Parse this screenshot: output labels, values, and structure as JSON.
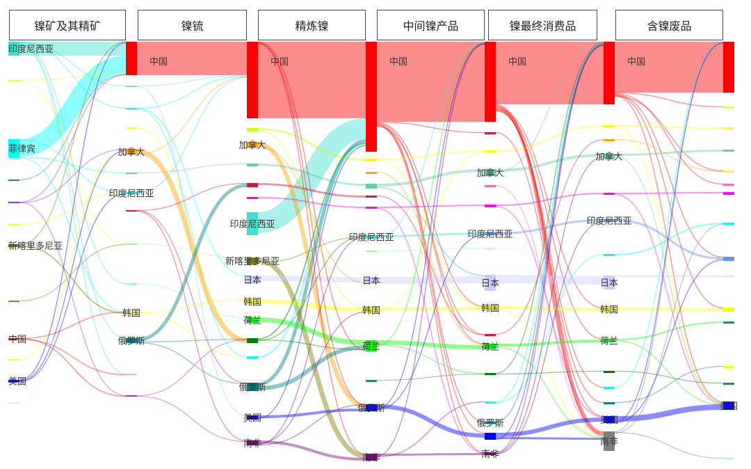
{
  "stages": [
    {
      "title": "镍矿及其精矿",
      "nodes": [
        {
          "id": "c0idn",
          "label": "印度尼西亚",
          "color": "#40e0d0"
        },
        {
          "id": "c0a",
          "label": "",
          "color": "#ffff00"
        },
        {
          "id": "c0phl",
          "label": "菲律宾",
          "color": "#00ffff"
        },
        {
          "id": "c0b",
          "label": "",
          "color": "#2e8b57"
        },
        {
          "id": "c0c",
          "label": "",
          "color": "#9932cc"
        },
        {
          "id": "c0d",
          "label": "",
          "color": "#ffff00"
        },
        {
          "id": "c0ncl",
          "label": "新喀里多尼亚",
          "color": "#808000"
        },
        {
          "id": "c0e",
          "label": "",
          "color": "#6b8e23"
        },
        {
          "id": "c0chn",
          "label": "中国",
          "color": "#ff0000"
        },
        {
          "id": "c0f",
          "label": "",
          "color": "#ffff00"
        },
        {
          "id": "c0usa",
          "label": "美国",
          "color": "#0000ff"
        },
        {
          "id": "c0g",
          "label": "",
          "color": "#e6e6fa"
        }
      ]
    },
    {
      "title": "镍锍",
      "nodes": [
        {
          "id": "c1chn",
          "label": "中国",
          "color": "#ff0000"
        },
        {
          "id": "c1a",
          "label": "",
          "color": "#87ceeb"
        },
        {
          "id": "c1b",
          "label": "",
          "color": "#00ffff"
        },
        {
          "id": "c1c",
          "label": "",
          "color": "#ffff00"
        },
        {
          "id": "c1can",
          "label": "加拿大",
          "color": "#ffa500"
        },
        {
          "id": "c1d",
          "label": "",
          "color": "#8fbc8f"
        },
        {
          "id": "c1idn",
          "label": "印度尼西亚",
          "color": "#40e0d0"
        },
        {
          "id": "c1e",
          "label": "",
          "color": "#dc143c"
        },
        {
          "id": "c1f",
          "label": "",
          "color": "#98fb98"
        },
        {
          "id": "c1g",
          "label": "",
          "color": "#7fffd4"
        },
        {
          "id": "c1kor",
          "label": "韩国",
          "color": "#ffff00"
        },
        {
          "id": "c1rus",
          "label": "俄罗斯",
          "color": "#008080"
        },
        {
          "id": "c1h",
          "label": "",
          "color": "#ffb6c1"
        },
        {
          "id": "c1i",
          "label": "",
          "color": "#9932cc"
        }
      ]
    },
    {
      "title": "精炼镍",
      "nodes": [
        {
          "id": "c2chn",
          "label": "中国",
          "color": "#ff0000"
        },
        {
          "id": "c2a",
          "label": "",
          "color": "#ccff00"
        },
        {
          "id": "c2can",
          "label": "加拿大",
          "color": "#ffa500"
        },
        {
          "id": "c2b",
          "label": "",
          "color": "#66cdaa"
        },
        {
          "id": "c2c",
          "label": "",
          "color": "#dc143c"
        },
        {
          "id": "c2d",
          "label": "",
          "color": "#ff00ff"
        },
        {
          "id": "c2idn",
          "label": "印度尼西亚",
          "color": "#40e0d0"
        },
        {
          "id": "c2ncl",
          "label": "新喀里多尼亚",
          "color": "#808000"
        },
        {
          "id": "c2jpn",
          "label": "日本",
          "color": "#ccccff"
        },
        {
          "id": "c2kor",
          "label": "韩国",
          "color": "#ffff00"
        },
        {
          "id": "c2nld",
          "label": "荷兰",
          "color": "#00ff00"
        },
        {
          "id": "c2aus",
          "label": "",
          "color": "#008000"
        },
        {
          "id": "c2e",
          "label": "",
          "color": "#00ffff"
        },
        {
          "id": "c2rus",
          "label": "俄罗斯",
          "color": "#008080"
        },
        {
          "id": "c2usa",
          "label": "美国",
          "color": "#0000ff"
        },
        {
          "id": "c2zaf",
          "label": "南非",
          "color": "#800080"
        }
      ]
    },
    {
      "title": "中间镍产品",
      "nodes": [
        {
          "id": "c3chn",
          "label": "中国",
          "color": "#ff0000"
        },
        {
          "id": "c3a",
          "label": "",
          "color": "#ffff00"
        },
        {
          "id": "c3b",
          "label": "",
          "color": "#ffa500"
        },
        {
          "id": "c3c",
          "label": "",
          "color": "#66cdaa"
        },
        {
          "id": "c3d",
          "label": "",
          "color": "#dc143c"
        },
        {
          "id": "c3e",
          "label": "",
          "color": "#ff00ff"
        },
        {
          "id": "c3idn",
          "label": "印度尼西亚",
          "color": "#40e0d0"
        },
        {
          "id": "c3f",
          "label": "",
          "color": "#98fb98"
        },
        {
          "id": "c3jpn",
          "label": "日本",
          "color": "#ccccff"
        },
        {
          "id": "c3kor",
          "label": "韩国",
          "color": "#ffff00"
        },
        {
          "id": "c3nld",
          "label": "荷兰",
          "color": "#00ff00"
        },
        {
          "id": "c3g",
          "label": "",
          "color": "#2e8b57"
        },
        {
          "id": "c3rus",
          "label": "俄罗斯",
          "color": "#0000ff"
        },
        {
          "id": "c3zaf",
          "label": "南非",
          "color": "#800080"
        }
      ]
    },
    {
      "title": "镍最终消费品",
      "nodes": [
        {
          "id": "c4chn",
          "label": "中国",
          "color": "#ff0000"
        },
        {
          "id": "c4a",
          "label": "",
          "color": "#dc143c"
        },
        {
          "id": "c4b",
          "label": "",
          "color": "#ffff00"
        },
        {
          "id": "c4can",
          "label": "加拿大",
          "color": "#66cdaa"
        },
        {
          "id": "c4c",
          "label": "",
          "color": "#ff69b4"
        },
        {
          "id": "c4d",
          "label": "",
          "color": "#ff00ff"
        },
        {
          "id": "c4idn",
          "label": "印度尼西亚",
          "color": "#6495ed"
        },
        {
          "id": "c4e",
          "label": "",
          "color": "#e6e6fa"
        },
        {
          "id": "c4jpn",
          "label": "日本",
          "color": "#ccccff"
        },
        {
          "id": "c4kor",
          "label": "韩国",
          "color": "#ffff00"
        },
        {
          "id": "c4f",
          "label": "",
          "color": "#dc143c"
        },
        {
          "id": "c4nld",
          "label": "荷兰",
          "color": "#00ff00"
        },
        {
          "id": "c4g",
          "label": "",
          "color": "#008000"
        },
        {
          "id": "c4h",
          "label": "",
          "color": "#00ffff"
        },
        {
          "id": "c4rus",
          "label": "俄罗斯",
          "color": "#008080"
        },
        {
          "id": "c4usa",
          "label": "",
          "color": "#0000ff"
        },
        {
          "id": "c4zaf",
          "label": "南非",
          "color": "#800080"
        }
      ]
    },
    {
      "title": "含镍废品",
      "nodes": [
        {
          "id": "c5chn",
          "label": "中国",
          "color": "#ff0000"
        },
        {
          "id": "c5a",
          "label": "",
          "color": "#ffff00"
        },
        {
          "id": "c5b",
          "label": "",
          "color": "#ffa500"
        },
        {
          "id": "c5can",
          "label": "加拿大",
          "color": "#66cdaa"
        },
        {
          "id": "c5c",
          "label": "",
          "color": "#ff00ff"
        },
        {
          "id": "c5idn",
          "label": "印度尼西亚",
          "color": "#6495ed"
        },
        {
          "id": "c5d",
          "label": "",
          "color": "#00ffff"
        },
        {
          "id": "c5jpn",
          "label": "日本",
          "color": "#ccccff"
        },
        {
          "id": "c5kor",
          "label": "韩国",
          "color": "#ffff00"
        },
        {
          "id": "c5nld",
          "label": "荷兰",
          "color": "#00ff00"
        },
        {
          "id": "c5e",
          "label": "",
          "color": "#008000"
        },
        {
          "id": "c5f",
          "label": "",
          "color": "#00ffff"
        },
        {
          "id": "c5g",
          "label": "",
          "color": "#008080"
        },
        {
          "id": "c5usa",
          "label": "美国",
          "color": "#0000ff"
        },
        {
          "id": "c5zaf",
          "label": "南非",
          "color": "#808080"
        }
      ]
    },
    {
      "title": "",
      "nodes": [
        {
          "id": "c6chn",
          "label": "",
          "color": "#ff0000"
        },
        {
          "id": "c6a",
          "label": "",
          "color": "#ffff00"
        },
        {
          "id": "c6b",
          "label": "",
          "color": "#ffff00"
        },
        {
          "id": "c6c",
          "label": "",
          "color": "#66cdaa"
        },
        {
          "id": "c6d",
          "label": "",
          "color": "#ffff00"
        },
        {
          "id": "c6e",
          "label": "",
          "color": "#ff69b4"
        },
        {
          "id": "c6f",
          "label": "",
          "color": "#ff00ff"
        },
        {
          "id": "c6g",
          "label": "",
          "color": "#00ffff"
        },
        {
          "id": "c6h",
          "label": "",
          "color": "#6495ed"
        },
        {
          "id": "c6i",
          "label": "",
          "color": "#e6e6fa"
        },
        {
          "id": "c6kor",
          "label": "",
          "color": "#ffff00"
        },
        {
          "id": "c6j",
          "label": "",
          "color": "#2e8b57"
        },
        {
          "id": "c6k",
          "label": "",
          "color": "#ffff00"
        },
        {
          "id": "c6l",
          "label": "",
          "color": "#2e8b57"
        },
        {
          "id": "c6usa",
          "label": "美国",
          "color": "#0000ff"
        },
        {
          "id": "c6m",
          "label": "",
          "color": "#afeeee"
        }
      ]
    }
  ],
  "links": [
    [
      "c0idn",
      "c1chn",
      20
    ],
    [
      "c0phl",
      "c1chn",
      25
    ],
    [
      "c0a",
      "c1chn",
      1
    ],
    [
      "c0b",
      "c1chn",
      1
    ],
    [
      "c0c",
      "c1chn",
      1
    ],
    [
      "c0ncl",
      "c1chn",
      1
    ],
    [
      "c0idn",
      "c1a",
      1
    ],
    [
      "c0idn",
      "c1b",
      1
    ],
    [
      "c0idn",
      "c1g",
      1
    ],
    [
      "c0idn",
      "c1rus",
      1
    ],
    [
      "c0idn",
      "c1h",
      1
    ],
    [
      "c0phl",
      "c1d",
      1
    ],
    [
      "c0phl",
      "c1kor",
      1
    ],
    [
      "c0phl",
      "c1idn",
      1
    ],
    [
      "c0a",
      "c1f",
      1
    ],
    [
      "c0c",
      "c1can",
      1
    ],
    [
      "c0c",
      "c1i",
      1
    ],
    [
      "c0d",
      "c1idn",
      1
    ],
    [
      "c0ncl",
      "c1kor",
      2
    ],
    [
      "c0e",
      "c1f",
      1
    ],
    [
      "c0chn",
      "c1kor",
      1
    ],
    [
      "c0chn",
      "c1h",
      1
    ],
    [
      "c0chn",
      "c1i",
      1
    ],
    [
      "c0f",
      "c1can",
      1
    ],
    [
      "c0usa",
      "c1chn",
      1
    ],
    [
      "c0usa",
      "c1can",
      1
    ],
    [
      "c0usa",
      "c1idn",
      1
    ],
    [
      "c0g",
      "c1chn",
      1
    ],
    [
      "c1chn",
      "c2chn",
      48
    ],
    [
      "c1a",
      "c2chn",
      1
    ],
    [
      "c1b",
      "c2chn",
      1
    ],
    [
      "c1b",
      "c2e",
      1
    ],
    [
      "c1c",
      "c2aus",
      1
    ],
    [
      "c1can",
      "c2aus",
      7
    ],
    [
      "c1can",
      "c2chn",
      1
    ],
    [
      "c1d",
      "c2b",
      1
    ],
    [
      "c1idn",
      "c2chn",
      1
    ],
    [
      "c1e",
      "c2c",
      1
    ],
    [
      "c1e",
      "c2zaf",
      1
    ],
    [
      "c1e",
      "c2rus",
      1
    ],
    [
      "c1f",
      "c2ncl",
      1
    ],
    [
      "c1g",
      "c2nld",
      1
    ],
    [
      "c1kor",
      "c2kor",
      1
    ],
    [
      "c1kor",
      "c2e",
      1
    ],
    [
      "c1rus",
      "c2c",
      5
    ],
    [
      "c1rus",
      "c2aus",
      1
    ],
    [
      "c1rus",
      "c2rus",
      1
    ],
    [
      "c1i",
      "c2aus",
      1
    ],
    [
      "c1i",
      "c2zaf",
      1
    ],
    [
      "c1a",
      "c2usa",
      1
    ],
    [
      "c1b",
      "c2jpn",
      1
    ],
    [
      "c2chn",
      "c3chn",
      110
    ],
    [
      "c2idn",
      "c3chn",
      30
    ],
    [
      "c2rus",
      "c3chn",
      5
    ],
    [
      "c2a",
      "c3a",
      3
    ],
    [
      "c2can",
      "c3rus",
      6
    ],
    [
      "c2b",
      "c3c",
      3
    ],
    [
      "c2c",
      "c3d",
      3
    ],
    [
      "c2d",
      "c3e",
      2
    ],
    [
      "c2ncl",
      "c3zaf",
      7
    ],
    [
      "c2jpn",
      "c3jpn",
      8
    ],
    [
      "c2kor",
      "c3kor",
      6
    ],
    [
      "c2nld",
      "c3nld",
      7
    ],
    [
      "c2rus",
      "c3nld",
      6
    ],
    [
      "c2usa",
      "c3rus",
      4
    ],
    [
      "c2zaf",
      "c3zaf",
      4
    ],
    [
      "c2aus",
      "c3chn",
      2
    ],
    [
      "c2aus",
      "c3nld",
      1
    ],
    [
      "c2aus",
      "c3idn",
      1
    ],
    [
      "c2e",
      "c3chn",
      2
    ],
    [
      "c2zaf",
      "c3kor",
      1
    ],
    [
      "c2zaf",
      "c3idn",
      1
    ],
    [
      "c2zaf",
      "c3rus",
      1
    ],
    [
      "c2chn",
      "c3nld",
      1
    ],
    [
      "c2chn",
      "c3zaf",
      1
    ],
    [
      "c2chn",
      "c3rus",
      1
    ],
    [
      "c2a",
      "c3kor",
      1
    ],
    [
      "c2can",
      "c3jpn",
      1
    ],
    [
      "c2ncl",
      "c3idn",
      1
    ],
    [
      "c2usa",
      "c3chn",
      1
    ],
    [
      "c3chn",
      "c4chn",
      115
    ],
    [
      "c3chn",
      "c4a",
      1
    ],
    [
      "c3chn",
      "c4kor",
      1
    ],
    [
      "c3chn",
      "c4nld",
      1
    ],
    [
      "c3chn",
      "c4rus",
      1
    ],
    [
      "c3chn",
      "c4usa",
      1
    ],
    [
      "c3chn",
      "c4zaf",
      1
    ],
    [
      "c3chn",
      "c4f",
      1
    ],
    [
      "c3a",
      "c4b",
      2
    ],
    [
      "c3a",
      "c4kor",
      1
    ],
    [
      "c3b",
      "c4nld",
      1
    ],
    [
      "c3c",
      "c4can",
      4
    ],
    [
      "c3c",
      "c4jpn",
      2
    ],
    [
      "c3d",
      "c4f",
      1
    ],
    [
      "c3e",
      "c4d",
      2
    ],
    [
      "c3e",
      "c4zaf",
      1
    ],
    [
      "c3idn",
      "c4idn",
      3
    ],
    [
      "c3idn",
      "c4chn",
      1
    ],
    [
      "c3jpn",
      "c4jpn",
      10
    ],
    [
      "c3kor",
      "c4kor",
      4
    ],
    [
      "c3kor",
      "c4b",
      1
    ],
    [
      "c3nld",
      "c4nld",
      6
    ],
    [
      "c3nld",
      "c4g",
      1
    ],
    [
      "c3nld",
      "c4chn",
      1
    ],
    [
      "c3g",
      "c4g",
      1
    ],
    [
      "c3rus",
      "c4usa",
      6
    ],
    [
      "c3rus",
      "c4chn",
      1
    ],
    [
      "c3rus",
      "c4idn",
      1
    ],
    [
      "c3zaf",
      "c4zaf",
      3
    ],
    [
      "c3zaf",
      "c4chn",
      1
    ],
    [
      "c3zaf",
      "c4h",
      1
    ],
    [
      "c3f",
      "c4e",
      1
    ],
    [
      "c4chn",
      "c5chn",
      90
    ],
    [
      "c4chn",
      "c5zaf",
      5
    ],
    [
      "c4chn",
      "c5kor",
      1
    ],
    [
      "c4chn",
      "c5usa",
      1
    ],
    [
      "c4chn",
      "c5nld",
      1
    ],
    [
      "c4chn",
      "c5g",
      1
    ],
    [
      "c4chn",
      "c5f",
      1
    ],
    [
      "c4a",
      "c5zaf",
      1
    ],
    [
      "c4b",
      "c5a",
      2
    ],
    [
      "c4can",
      "c5can",
      4
    ],
    [
      "c4can",
      "c5chn",
      1
    ],
    [
      "c4c",
      "c5zaf",
      1
    ],
    [
      "c4d",
      "c5c",
      2
    ],
    [
      "c4d",
      "c5usa",
      1
    ],
    [
      "c4idn",
      "c5idn",
      3
    ],
    [
      "c4e",
      "c5jpn",
      1
    ],
    [
      "c4jpn",
      "c5jpn",
      12
    ],
    [
      "c4kor",
      "c5kor",
      4
    ],
    [
      "c4kor",
      "c5zaf",
      1
    ],
    [
      "c4f",
      "c5b",
      1
    ],
    [
      "c4nld",
      "c5nld",
      4
    ],
    [
      "c4nld",
      "c5zaf",
      1
    ],
    [
      "c4g",
      "c5chn",
      1
    ],
    [
      "c4g",
      "c5e",
      1
    ],
    [
      "c4h",
      "c5chn",
      1
    ],
    [
      "c4h",
      "c5d",
      1
    ],
    [
      "c4rus",
      "c5chn",
      1
    ],
    [
      "c4usa",
      "c5usa",
      6
    ],
    [
      "c4usa",
      "c5zaf",
      3
    ],
    [
      "c4usa",
      "c5chn",
      1
    ],
    [
      "c4zaf",
      "c5chn",
      1
    ],
    [
      "c4zaf",
      "c5can",
      1
    ],
    [
      "c4zaf",
      "c5idn",
      1
    ],
    [
      "c5chn",
      "c6chn",
      73
    ],
    [
      "c5chn",
      "c6a",
      1
    ],
    [
      "c5chn",
      "c6e",
      1
    ],
    [
      "c5chn",
      "c6h",
      1
    ],
    [
      "c5chn",
      "c6kor",
      1
    ],
    [
      "c5chn",
      "c6usa",
      1
    ],
    [
      "c5chn",
      "c6d",
      1
    ],
    [
      "c5a",
      "c6b",
      2
    ],
    [
      "c5a",
      "c6usa",
      1
    ],
    [
      "c5b",
      "c6d",
      1
    ],
    [
      "c5can",
      "c6c",
      3
    ],
    [
      "c5can",
      "c6usa",
      1
    ],
    [
      "c5c",
      "c6f",
      2
    ],
    [
      "c5c",
      "c6usa",
      1
    ],
    [
      "c5idn",
      "c6h",
      3
    ],
    [
      "c5d",
      "c6g",
      2
    ],
    [
      "c5jpn",
      "c6i",
      2
    ],
    [
      "c5kor",
      "c6kor",
      4
    ],
    [
      "c5nld",
      "c6j",
      2
    ],
    [
      "c5nld",
      "c6usa",
      1
    ],
    [
      "c5e",
      "c6l",
      1
    ],
    [
      "c5f",
      "c6chn",
      1
    ],
    [
      "c5g",
      "c6k",
      1
    ],
    [
      "c5usa",
      "c6usa",
      8
    ],
    [
      "c5usa",
      "c6chn",
      1
    ],
    [
      "c5usa",
      "c6h",
      1
    ],
    [
      "c5zaf",
      "c6chn",
      1
    ],
    [
      "c5zaf",
      "c6m",
      1
    ],
    [
      "c5zaf",
      "c6g",
      1
    ]
  ]
}
